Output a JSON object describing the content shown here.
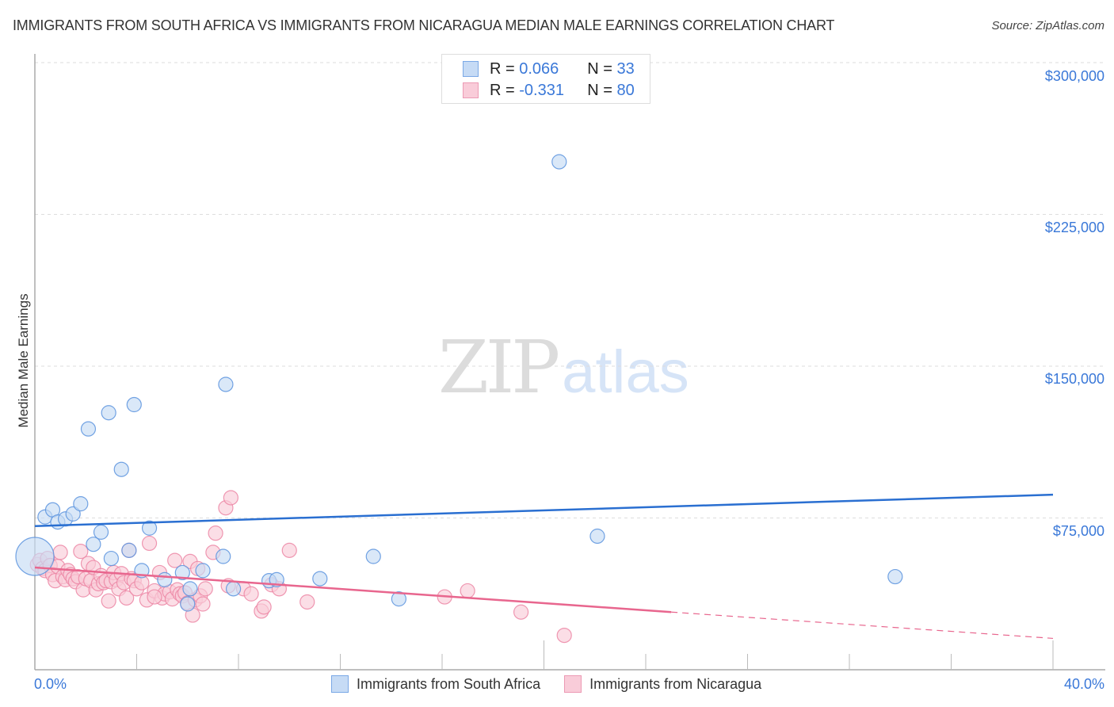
{
  "header": {
    "title": "IMMIGRANTS FROM SOUTH AFRICA VS IMMIGRANTS FROM NICARAGUA MEDIAN MALE EARNINGS CORRELATION CHART",
    "source": "Source: ZipAtlas.com"
  },
  "watermark": {
    "zip": "ZIP",
    "atlas": "atlas"
  },
  "legend_box": {
    "rows": [
      {
        "r_label": "R =",
        "r_value": "0.066",
        "n_label": "N =",
        "n_value": "33",
        "color": "#a8c8f0"
      },
      {
        "r_label": "R =",
        "r_value": "-0.331",
        "n_label": "N =",
        "n_value": "80",
        "color": "#f6b8cb"
      }
    ]
  },
  "axes": {
    "ylabel": "Median Male Earnings",
    "yticks": [
      "$300,000",
      "$225,000",
      "$150,000",
      "$75,000"
    ],
    "xticks": [
      "0.0%",
      "40.0%"
    ]
  },
  "bottom_legend": [
    {
      "label": "Immigrants from South Africa",
      "color": "#a8c8f0"
    },
    {
      "label": "Immigrants from Nicaragua",
      "color": "#f6b8cb"
    }
  ],
  "colors": {
    "blue_fill": "#c6dbf5",
    "blue_stroke": "#5b93de",
    "blue_line": "#2a6fd1",
    "pink_fill": "#f9ccd9",
    "pink_stroke": "#ec86a4",
    "pink_line": "#e8668e",
    "axis_text": "#3a78d8"
  },
  "chart_data": {
    "type": "scatter",
    "title": "IMMIGRANTS FROM SOUTH AFRICA VS IMMIGRANTS FROM NICARAGUA MEDIAN MALE EARNINGS CORRELATION CHART",
    "xlabel": "",
    "ylabel": "Median Male Earnings",
    "xlim": [
      0,
      40
    ],
    "ylim": [
      0,
      300000
    ],
    "x_unit": "%",
    "yticks": [
      75000,
      150000,
      225000,
      300000
    ],
    "grid": true,
    "legend_position": "top-center",
    "series": [
      {
        "name": "Immigrants from South Africa",
        "R": 0.066,
        "N": 33,
        "trend": {
          "x": [
            0,
            40
          ],
          "y": [
            71000,
            86500
          ]
        },
        "points": [
          {
            "x": 0.0,
            "y": 56000,
            "large": true
          },
          {
            "x": 0.4,
            "y": 75500
          },
          {
            "x": 0.7,
            "y": 79000
          },
          {
            "x": 0.9,
            "y": 73000
          },
          {
            "x": 1.2,
            "y": 74500
          },
          {
            "x": 1.5,
            "y": 77000
          },
          {
            "x": 1.8,
            "y": 82000
          },
          {
            "x": 2.1,
            "y": 119000
          },
          {
            "x": 2.3,
            "y": 62000
          },
          {
            "x": 2.6,
            "y": 68000
          },
          {
            "x": 2.9,
            "y": 127000
          },
          {
            "x": 3.0,
            "y": 55000
          },
          {
            "x": 3.4,
            "y": 99000
          },
          {
            "x": 3.7,
            "y": 59000
          },
          {
            "x": 3.9,
            "y": 131000
          },
          {
            "x": 4.2,
            "y": 49000
          },
          {
            "x": 4.5,
            "y": 70000
          },
          {
            "x": 5.1,
            "y": 44500
          },
          {
            "x": 5.8,
            "y": 48000
          },
          {
            "x": 6.1,
            "y": 40000
          },
          {
            "x": 6.0,
            "y": 32500
          },
          {
            "x": 6.6,
            "y": 49000
          },
          {
            "x": 7.4,
            "y": 56000
          },
          {
            "x": 7.5,
            "y": 141000
          },
          {
            "x": 7.8,
            "y": 40000
          },
          {
            "x": 9.2,
            "y": 44000
          },
          {
            "x": 9.5,
            "y": 44500
          },
          {
            "x": 11.2,
            "y": 45000
          },
          {
            "x": 13.3,
            "y": 56000
          },
          {
            "x": 14.3,
            "y": 35000
          },
          {
            "x": 20.6,
            "y": 251000
          },
          {
            "x": 22.1,
            "y": 66000
          },
          {
            "x": 33.8,
            "y": 46000
          }
        ]
      },
      {
        "name": "Immigrants from Nicaragua",
        "R": -0.331,
        "N": 80,
        "trend": {
          "x": [
            0,
            25,
            40
          ],
          "y": [
            50500,
            28500,
            15500
          ],
          "dashed_from_x": 25
        },
        "points": [
          {
            "x": 0.1,
            "y": 52000
          },
          {
            "x": 0.2,
            "y": 54000
          },
          {
            "x": 0.3,
            "y": 50000
          },
          {
            "x": 0.4,
            "y": 49000
          },
          {
            "x": 0.5,
            "y": 55000
          },
          {
            "x": 0.6,
            "y": 51500
          },
          {
            "x": 0.7,
            "y": 47000
          },
          {
            "x": 0.8,
            "y": 44000
          },
          {
            "x": 0.9,
            "y": 51000
          },
          {
            "x": 1.0,
            "y": 58000
          },
          {
            "x": 1.1,
            "y": 46000
          },
          {
            "x": 1.2,
            "y": 44500
          },
          {
            "x": 1.3,
            "y": 49000
          },
          {
            "x": 1.4,
            "y": 47000
          },
          {
            "x": 1.5,
            "y": 45000
          },
          {
            "x": 1.6,
            "y": 43500
          },
          {
            "x": 1.7,
            "y": 46000
          },
          {
            "x": 1.8,
            "y": 58500
          },
          {
            "x": 1.9,
            "y": 39500
          },
          {
            "x": 2.0,
            "y": 45000
          },
          {
            "x": 2.1,
            "y": 52500
          },
          {
            "x": 2.2,
            "y": 44000
          },
          {
            "x": 2.3,
            "y": 50500
          },
          {
            "x": 2.4,
            "y": 39500
          },
          {
            "x": 2.5,
            "y": 42500
          },
          {
            "x": 2.6,
            "y": 46500
          },
          {
            "x": 2.7,
            "y": 43000
          },
          {
            "x": 2.8,
            "y": 44000
          },
          {
            "x": 2.9,
            "y": 34000
          },
          {
            "x": 3.0,
            "y": 43500
          },
          {
            "x": 3.1,
            "y": 48000
          },
          {
            "x": 3.2,
            "y": 44500
          },
          {
            "x": 3.3,
            "y": 40000
          },
          {
            "x": 3.4,
            "y": 47500
          },
          {
            "x": 3.5,
            "y": 43000
          },
          {
            "x": 3.6,
            "y": 35500
          },
          {
            "x": 3.7,
            "y": 59000
          },
          {
            "x": 3.8,
            "y": 45000
          },
          {
            "x": 3.9,
            "y": 44000
          },
          {
            "x": 4.0,
            "y": 40000
          },
          {
            "x": 4.2,
            "y": 43000
          },
          {
            "x": 4.4,
            "y": 34500
          },
          {
            "x": 4.5,
            "y": 62500
          },
          {
            "x": 4.7,
            "y": 39000
          },
          {
            "x": 4.9,
            "y": 48000
          },
          {
            "x": 5.0,
            "y": 35500
          },
          {
            "x": 5.1,
            "y": 37500
          },
          {
            "x": 5.3,
            "y": 38500
          },
          {
            "x": 5.4,
            "y": 35000
          },
          {
            "x": 5.5,
            "y": 54000
          },
          {
            "x": 5.6,
            "y": 39500
          },
          {
            "x": 5.7,
            "y": 37500
          },
          {
            "x": 5.8,
            "y": 36500
          },
          {
            "x": 5.9,
            "y": 38000
          },
          {
            "x": 6.0,
            "y": 33000
          },
          {
            "x": 6.1,
            "y": 53500
          },
          {
            "x": 6.2,
            "y": 27000
          },
          {
            "x": 6.3,
            "y": 34500
          },
          {
            "x": 6.4,
            "y": 50000
          },
          {
            "x": 6.5,
            "y": 36500
          },
          {
            "x": 6.6,
            "y": 32500
          },
          {
            "x": 6.7,
            "y": 40000
          },
          {
            "x": 7.0,
            "y": 58000
          },
          {
            "x": 7.1,
            "y": 67500
          },
          {
            "x": 7.5,
            "y": 80000
          },
          {
            "x": 7.6,
            "y": 41500
          },
          {
            "x": 7.7,
            "y": 85000
          },
          {
            "x": 8.2,
            "y": 40000
          },
          {
            "x": 8.5,
            "y": 37500
          },
          {
            "x": 8.9,
            "y": 29000
          },
          {
            "x": 9.0,
            "y": 31000
          },
          {
            "x": 9.3,
            "y": 42000
          },
          {
            "x": 9.6,
            "y": 40000
          },
          {
            "x": 10.0,
            "y": 59000
          },
          {
            "x": 10.7,
            "y": 33500
          },
          {
            "x": 16.1,
            "y": 36000
          },
          {
            "x": 17.0,
            "y": 39000
          },
          {
            "x": 19.1,
            "y": 28500
          },
          {
            "x": 20.8,
            "y": 17000
          },
          {
            "x": 4.7,
            "y": 36000
          }
        ]
      }
    ]
  }
}
